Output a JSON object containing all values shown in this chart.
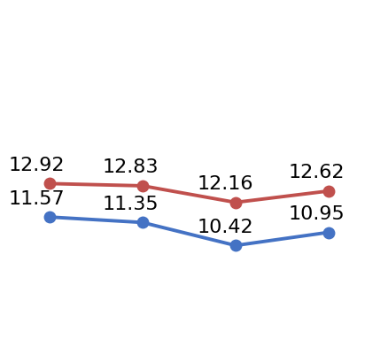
{
  "red_values": [
    12.92,
    12.83,
    12.16,
    12.62
  ],
  "blue_values": [
    11.57,
    11.35,
    10.42,
    10.95
  ],
  "x_positions": [
    0,
    1,
    2,
    3
  ],
  "red_color": "#C0504D",
  "blue_color": "#4472C4",
  "background_color": "#FFFFFF",
  "label_fontsize": 16,
  "line_width": 2.8,
  "marker_size": 9,
  "ylim": [
    7.0,
    20.0
  ],
  "xlim": [
    -0.15,
    3.55
  ]
}
